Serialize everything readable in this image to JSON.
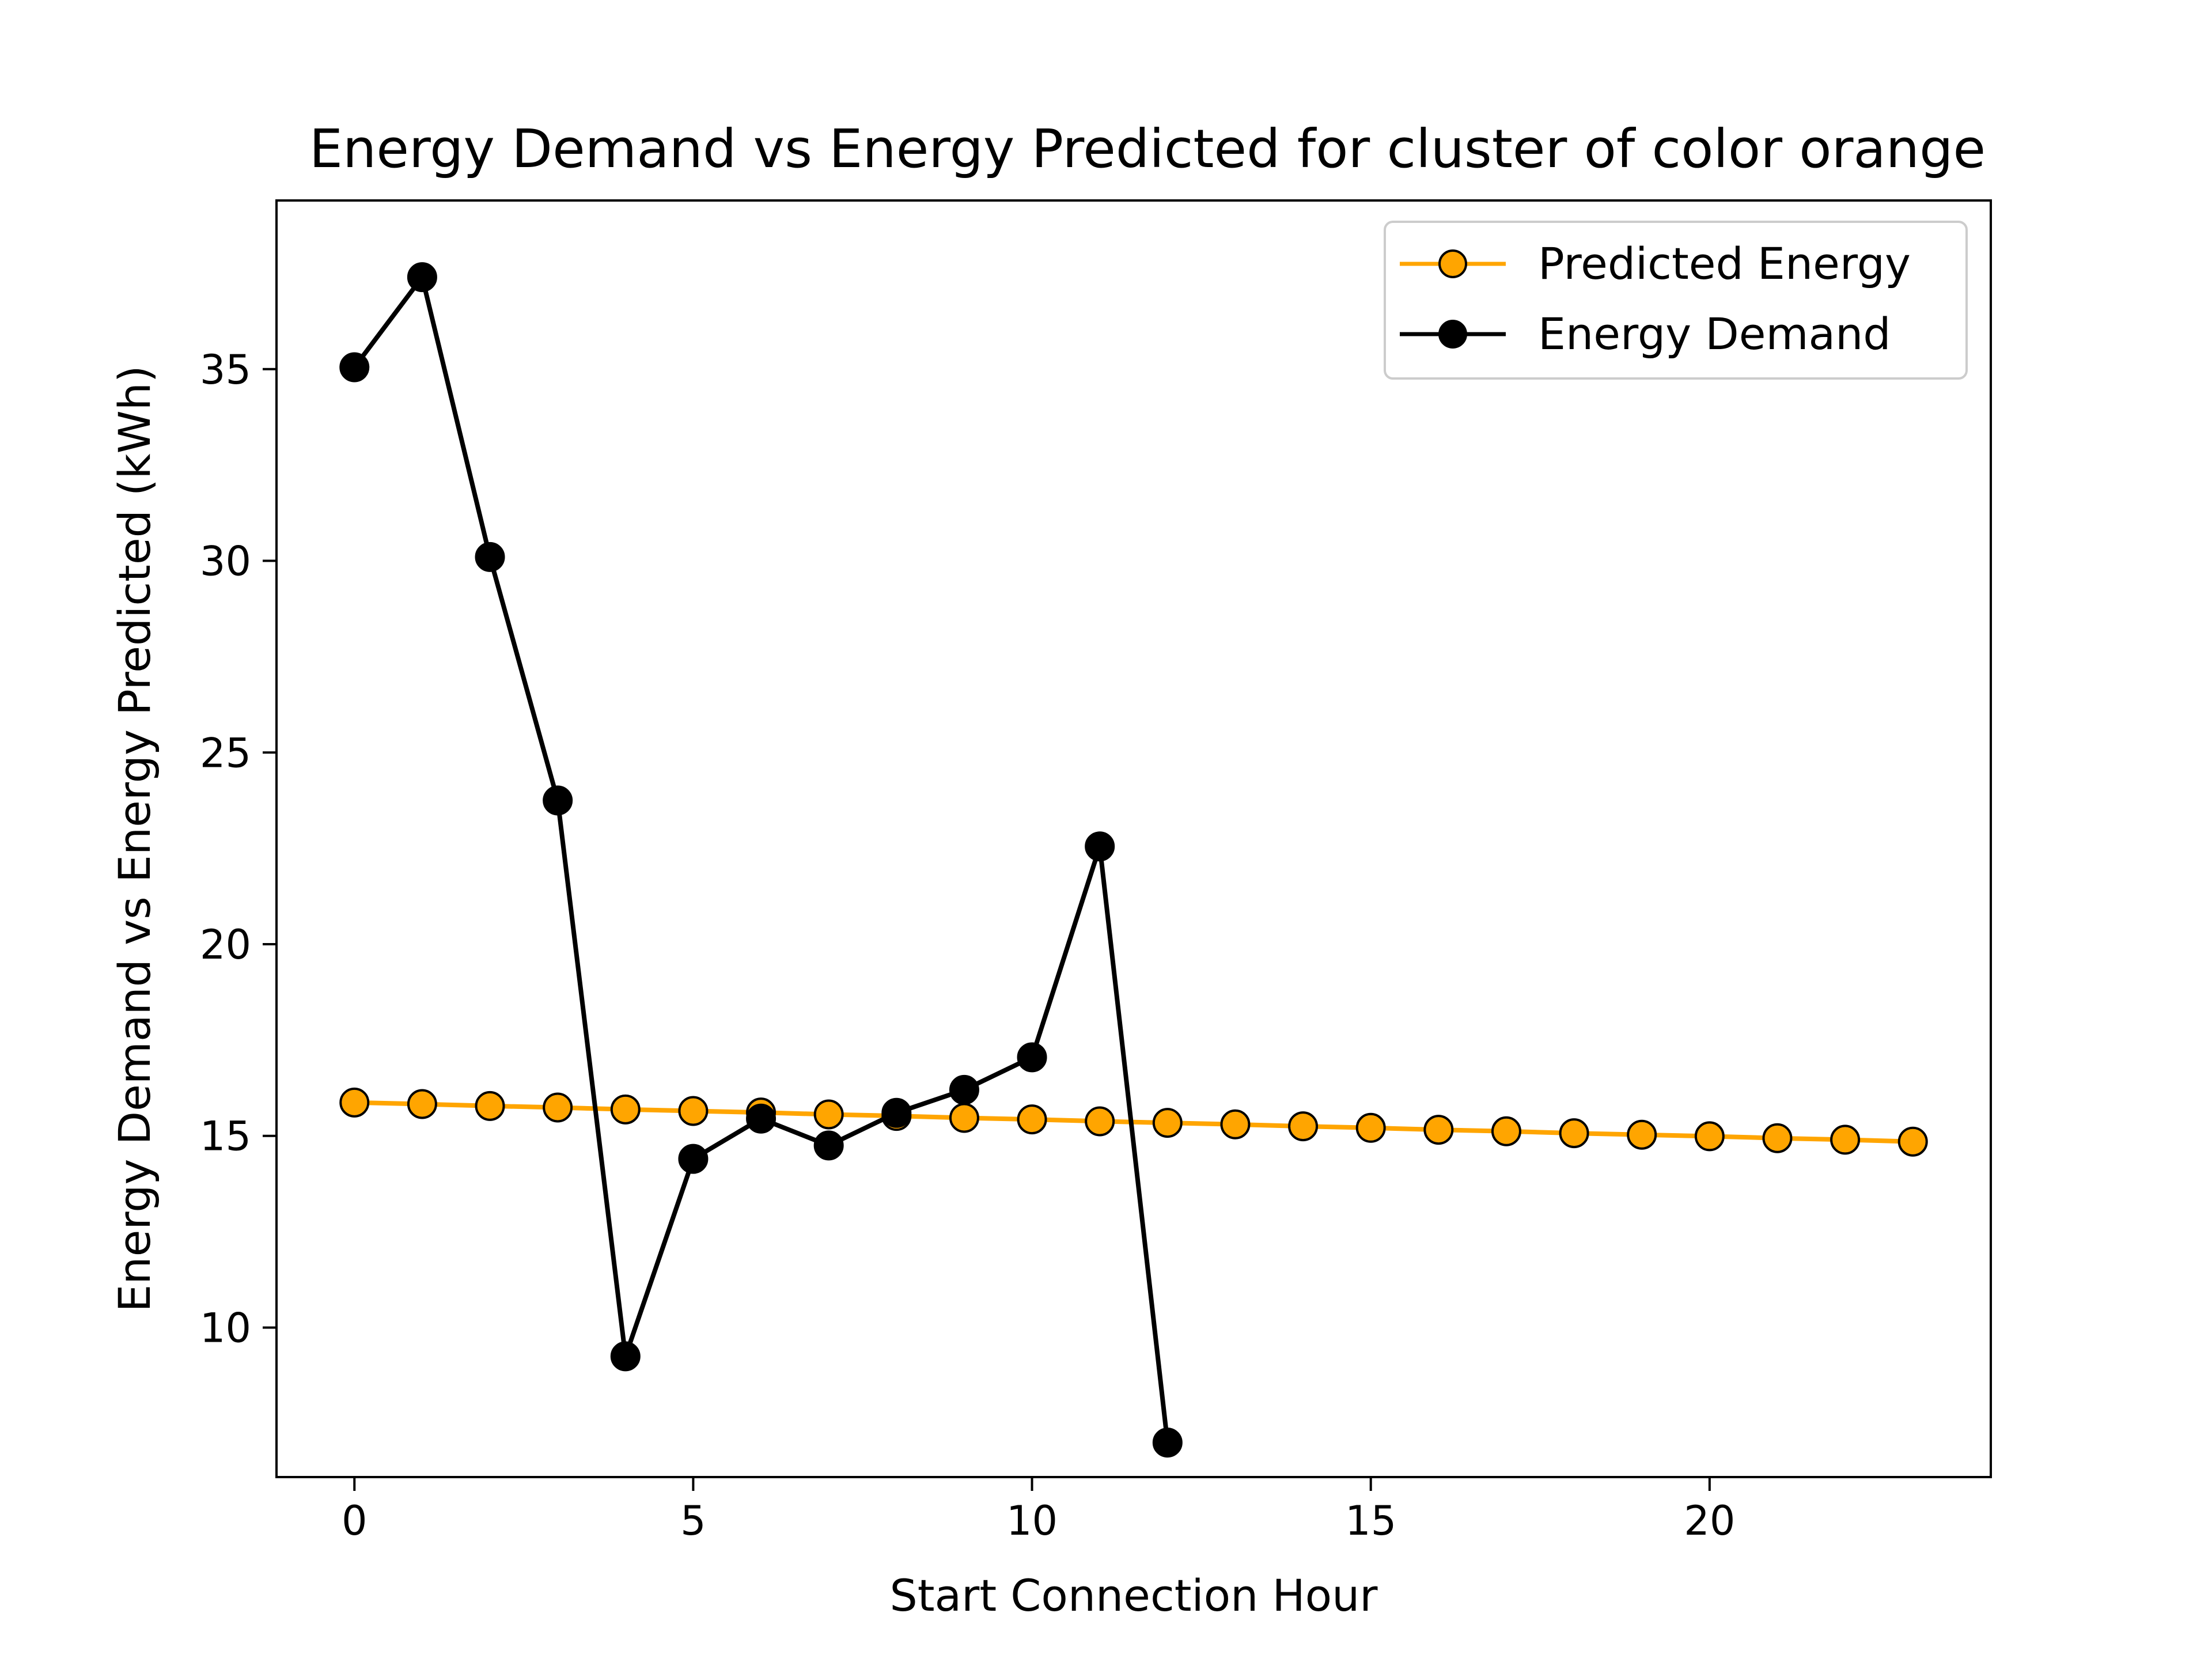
{
  "chart_data": {
    "type": "line",
    "title": "Energy Demand vs Energy Predicted for cluster of color  orange",
    "xlabel": "Start Connection Hour",
    "ylabel": "Energy Demand vs Energy Predicted (kWh)",
    "xlim": [
      -1.15,
      24.15
    ],
    "ylim": [
      6.1,
      39.4
    ],
    "xticks": [
      0,
      5,
      10,
      15,
      20
    ],
    "yticks": [
      10,
      15,
      20,
      25,
      30,
      35
    ],
    "grid": false,
    "legend_position": "top-right",
    "series": [
      {
        "name": "Predicted Energy",
        "color": "#ffa500",
        "marker_face": "#ffa500",
        "marker_edge": "#000000",
        "x": [
          0,
          1,
          2,
          3,
          4,
          5,
          6,
          7,
          8,
          9,
          10,
          11,
          12,
          13,
          14,
          15,
          16,
          17,
          18,
          19,
          20,
          21,
          22,
          23
        ],
        "y": [
          15.87,
          15.83,
          15.78,
          15.74,
          15.69,
          15.65,
          15.61,
          15.56,
          15.52,
          15.47,
          15.43,
          15.38,
          15.34,
          15.3,
          15.25,
          15.21,
          15.16,
          15.12,
          15.07,
          15.03,
          14.99,
          14.94,
          14.9,
          14.85
        ]
      },
      {
        "name": "Energy Demand",
        "color": "#000000",
        "marker_face": "#000000",
        "marker_edge": "#000000",
        "x": [
          0,
          1,
          2,
          3,
          4,
          5,
          6,
          7,
          8,
          9,
          10,
          11,
          12
        ],
        "y": [
          35.05,
          37.4,
          30.1,
          23.75,
          9.25,
          14.4,
          15.45,
          14.75,
          15.6,
          16.2,
          17.05,
          22.55,
          7.0
        ]
      }
    ]
  }
}
